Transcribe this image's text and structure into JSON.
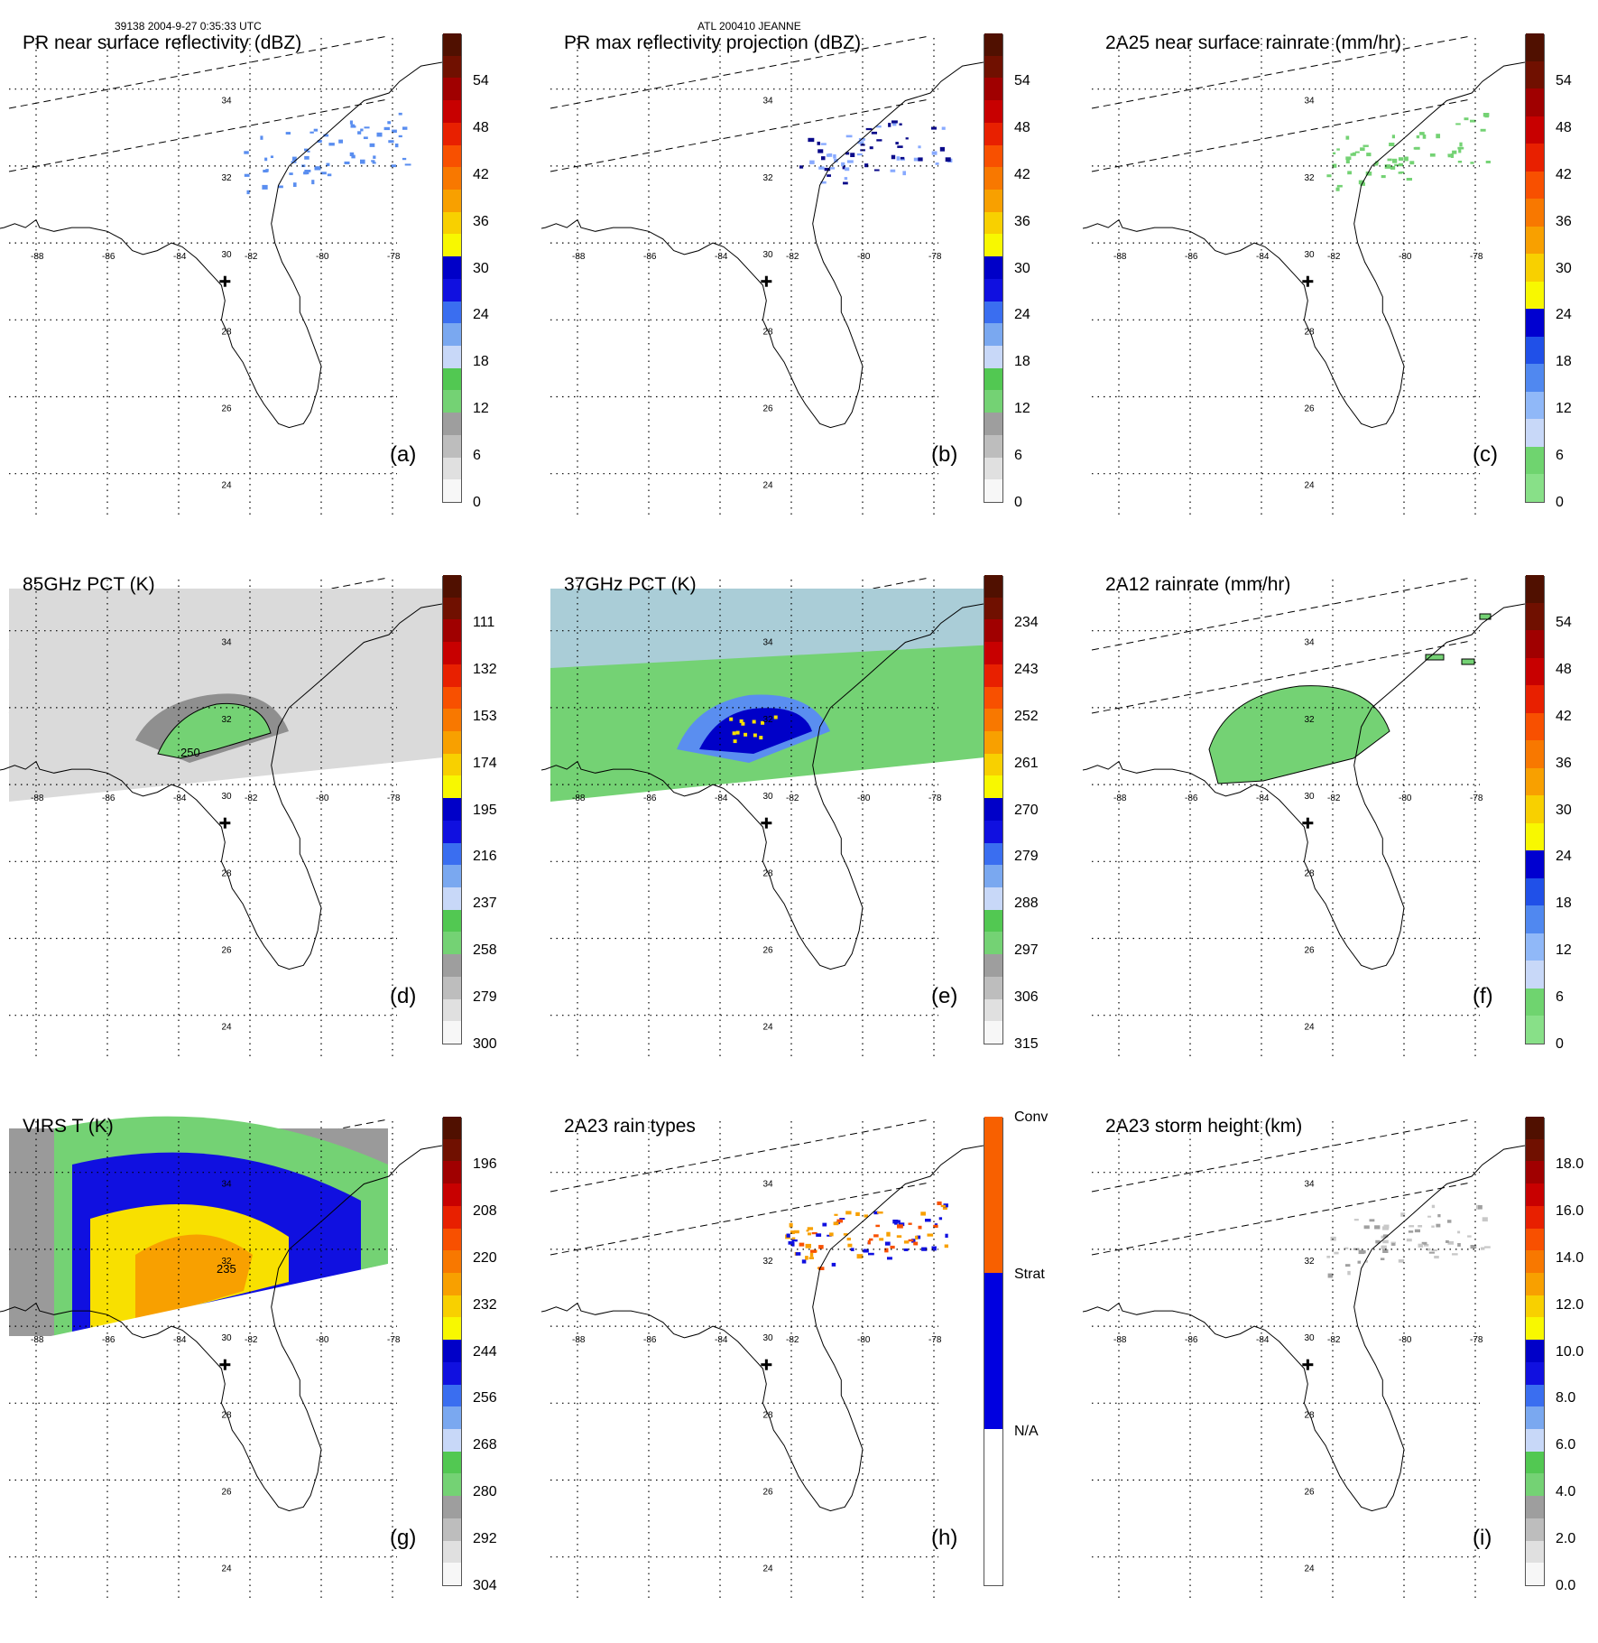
{
  "header": {
    "left": "39138 2004-9-27 0:35:33 UTC",
    "center": "ATL 200410 JEANNE"
  },
  "map_axes": {
    "lon_labels": [
      "-88",
      "-86",
      "-84",
      "-82",
      "-80",
      "-78"
    ],
    "lat_labels": [
      "34",
      "32",
      "30",
      "28",
      "26",
      "24"
    ]
  },
  "colors": {
    "land_outline": "#000000",
    "grid": "#000000",
    "swath_edge": "#000000"
  },
  "panels": [
    {
      "id": "a",
      "title": "PR near surface reflectivity (dBZ)",
      "corner": "(a)",
      "ticks": [
        "54",
        "48",
        "42",
        "36",
        "30",
        "24",
        "18",
        "12",
        "6",
        "0"
      ],
      "field": "pr_sparse"
    },
    {
      "id": "b",
      "title": "PR max reflectivity projection (dBZ)",
      "corner": "(b)",
      "ticks": [
        "54",
        "48",
        "42",
        "36",
        "30",
        "24",
        "18",
        "12",
        "6",
        "0"
      ],
      "field": "pr_contour"
    },
    {
      "id": "c",
      "title": "2A25 near surface rainrate (mm/hr)",
      "corner": "(c)",
      "ticks": [
        "54",
        "48",
        "42",
        "36",
        "30",
        "24",
        "18",
        "12",
        "6",
        "0"
      ],
      "field": "rain_sparse"
    },
    {
      "id": "d",
      "title": "85GHz PCT (K)",
      "corner": "(d)",
      "ticks": [
        "111",
        "132",
        "153",
        "174",
        "195",
        "216",
        "237",
        "258",
        "279",
        "300"
      ],
      "field": "pct85",
      "annotation": "250"
    },
    {
      "id": "e",
      "title": "37GHz PCT (K)",
      "corner": "(e)",
      "ticks": [
        "234",
        "243",
        "252",
        "261",
        "270",
        "279",
        "288",
        "297",
        "306",
        "315"
      ],
      "field": "pct37"
    },
    {
      "id": "f",
      "title": "2A12 rainrate (mm/hr)",
      "corner": "(f)",
      "ticks": [
        "54",
        "48",
        "42",
        "36",
        "30",
        "24",
        "18",
        "12",
        "6",
        "0"
      ],
      "field": "rain12"
    },
    {
      "id": "g",
      "title": "VIRS T",
      "title_suffix": "(K)",
      "corner": "(g)",
      "ticks": [
        "196",
        "208",
        "220",
        "232",
        "244",
        "256",
        "268",
        "280",
        "292",
        "304"
      ],
      "field": "virs",
      "annotation": "235"
    },
    {
      "id": "h",
      "title": "2A23 rain types",
      "corner": "(h)",
      "ticks": [
        "Conv",
        "Strat",
        "N/A"
      ],
      "field": "raintype"
    },
    {
      "id": "i",
      "title": "2A23 storm height (km)",
      "corner": "(i)",
      "ticks": [
        "18.0",
        "16.0",
        "14.0",
        "12.0",
        "10.0",
        "8.0",
        "6.0",
        "4.0",
        "2.0",
        "0.0"
      ],
      "field": "height"
    }
  ],
  "colorbar_scales": {
    "standard": [
      "#f7f7f7",
      "#e0e0e0",
      "#bdbdbd",
      "#9e9e9e",
      "#74d274",
      "#52c852",
      "#c8d8f8",
      "#7aa8f0",
      "#3a6ef0",
      "#1010e0",
      "#0000c8",
      "#f8f800",
      "#f8d000",
      "#f8a000",
      "#f87800",
      "#f85000",
      "#e82000",
      "#c80000",
      "#a00000",
      "#701000",
      "#501000"
    ],
    "rain": [
      "#88e088",
      "#6fd46f",
      "#c8d8f8",
      "#90b8f8",
      "#5088f0",
      "#2050e8",
      "#0000d0",
      "#f8f800",
      "#f8d000",
      "#f8a000",
      "#f87800",
      "#f85000",
      "#e82000",
      "#c80000",
      "#a00000",
      "#701000",
      "#501000"
    ],
    "raintype": [
      "#ffffff",
      "#0000e0",
      "#f86000"
    ]
  }
}
